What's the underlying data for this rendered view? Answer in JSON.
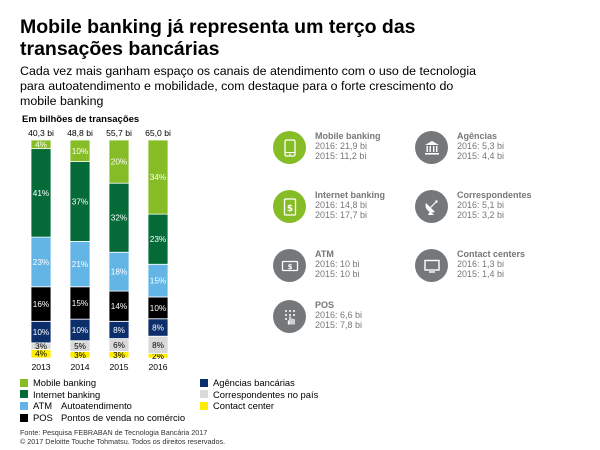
{
  "header": {
    "title": "Mobile banking já representa um terço das transações bancárias",
    "subtitle": "Cada vez mais ganham espaço os canais de atendimento com o uso de tecnologia para autoatendimento e mobilidade, com destaque para o forte crescimento do mobile banking"
  },
  "chart_data": {
    "type": "bar",
    "stacked": true,
    "normalized_percent": true,
    "title": "Em bilhões de transações",
    "categories": [
      "2013",
      "2014",
      "2015",
      "2016"
    ],
    "totals": [
      "40,3 bi",
      "48,8 bi",
      "55,7 bi",
      "65,0 bi"
    ],
    "grid": false,
    "legend_placement": "bottom",
    "series": [
      {
        "key": "contact",
        "values": [
          4,
          3,
          3,
          2
        ],
        "labels": [
          "4%",
          "3%",
          "3%",
          "2%"
        ],
        "color": "#ffed00",
        "label_color": "#000000"
      },
      {
        "key": "corresp",
        "values": [
          3,
          5,
          6,
          8
        ],
        "labels": [
          "3%",
          "5%",
          "6%",
          "8%"
        ],
        "color": "#d9d9d9",
        "label_color": "#000000"
      },
      {
        "key": "agencias",
        "values": [
          10,
          10,
          8,
          8
        ],
        "labels": [
          "10%",
          "10%",
          "8%",
          "8%"
        ],
        "color": "#0c2f6b",
        "label_color": "#ffffff"
      },
      {
        "key": "pos",
        "values": [
          16,
          15,
          14,
          10
        ],
        "labels": [
          "16%",
          "15%",
          "14%",
          "10%"
        ],
        "color": "#000000",
        "label_color": "#ffffff"
      },
      {
        "key": "atm",
        "values": [
          23,
          21,
          18,
          15
        ],
        "labels": [
          "23%",
          "21%",
          "18%",
          "15%"
        ],
        "color": "#62b5e5",
        "label_color": "#ffffff"
      },
      {
        "key": "internet",
        "values": [
          41,
          37,
          32,
          23
        ],
        "labels": [
          "41%",
          "37%",
          "32%",
          "23%"
        ],
        "color": "#046a38",
        "label_color": "#ffffff"
      },
      {
        "key": "mobile",
        "values": [
          4,
          10,
          20,
          34
        ],
        "labels": [
          "4%",
          "10%",
          "20%",
          "34%"
        ],
        "color": "#86bc25",
        "label_color": "#ffffff"
      }
    ]
  },
  "legend": {
    "left": [
      {
        "code": "",
        "label": "Mobile banking",
        "color": "#86bc25"
      },
      {
        "code": "",
        "label": "Internet banking",
        "color": "#046a38"
      },
      {
        "code": "ATM",
        "label": "Autoatendimento",
        "color": "#62b5e5"
      },
      {
        "code": "POS",
        "label": "Pontos de venda no comércio",
        "color": "#000000"
      }
    ],
    "right": [
      {
        "label": "Agências bancárias",
        "color": "#0c2f6b"
      },
      {
        "label": "Correspondentes no país",
        "color": "#d9d9d9"
      },
      {
        "label": "Contact center",
        "color": "#ffed00"
      }
    ]
  },
  "channels": [
    {
      "name": "Mobile banking",
      "line1": "2016: 21,9 bi",
      "line2": "2015: 11,2 bi",
      "color": "#86bc25",
      "icon": "mobile-phone-icon"
    },
    {
      "name": "Internet banking",
      "line1": "2016: 14,8 bi",
      "line2": "2015: 17,7 bi",
      "color": "#86bc25",
      "icon": "dollar-document-icon"
    },
    {
      "name": "ATM",
      "line1": "2016: 10 bi",
      "line2": "2015: 10 bi",
      "color": "#75787b",
      "icon": "cash-icon"
    },
    {
      "name": "POS",
      "line1": "2016: 6,6 bi",
      "line2": "2015: 7,8 bi",
      "color": "#75787b",
      "icon": "keypad-hand-icon"
    },
    {
      "name": "Agências",
      "line1": "2016: 5,3 bi",
      "line2": "2015: 4,4 bi",
      "color": "#75787b",
      "icon": "bank-building-icon"
    },
    {
      "name": "Correspondentes",
      "line1": "2016: 5,1 bi",
      "line2": "2015: 3,2 bi",
      "color": "#75787b",
      "icon": "satellite-dish-icon"
    },
    {
      "name": "Contact centers",
      "line1": "2016: 1,3 bi",
      "line2": "2015: 1,4 bi",
      "color": "#75787b",
      "icon": "monitor-icon"
    }
  ],
  "footer": {
    "source": "Fonte: Pesquisa FEBRABAN de Tecnologia Bancária 2017",
    "copyright": "© 2017 Deloitte Touche Tohmatsu. Todos os direitos reservados."
  }
}
